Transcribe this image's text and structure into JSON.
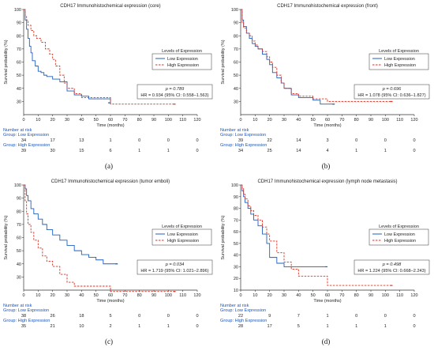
{
  "chart_data": [
    {
      "type": "line",
      "panel_label": "(a)",
      "title": "CDH17 Immunohistochemical expression (core)",
      "xlabel": "Time (months)",
      "ylabel": "Survival probability (%)",
      "xlim": [
        0,
        120
      ],
      "ylim": [
        20,
        100
      ],
      "xticks": [
        0,
        10,
        20,
        30,
        40,
        50,
        60,
        70,
        80,
        90,
        100,
        110,
        120
      ],
      "yticks": [
        30,
        40,
        50,
        60,
        70,
        80,
        90,
        100
      ],
      "legend": {
        "title": "Levels of Expression",
        "placement": "right"
      },
      "p_text": "p = 0.789",
      "hr_text": "HR = 0.934 (95% CI: 0.558–1.563)",
      "risk_title": "Number at risk",
      "series": [
        {
          "name": "Low Expression",
          "group_label": "Group: Low Expression",
          "color": "#1f5fbf",
          "dash": "solid",
          "at_risk": [
            "34",
            "17",
            "13",
            "1",
            "0",
            "0",
            "0"
          ],
          "x": [
            0,
            1,
            2,
            3,
            4,
            5,
            6,
            8,
            10,
            12,
            14,
            16,
            20,
            25,
            30,
            35,
            40,
            45,
            60
          ],
          "y": [
            100,
            92,
            85,
            78,
            72,
            67,
            61,
            57,
            53,
            52,
            50,
            49,
            47,
            45,
            38,
            35,
            34,
            32,
            29
          ]
        },
        {
          "name": "High Expression",
          "group_label": "Group: High Expression",
          "color": "#e03020",
          "dash": "dashed",
          "at_risk": [
            "39",
            "30",
            "15",
            "6",
            "1",
            "1",
            "0"
          ],
          "x": [
            0,
            1,
            2,
            3,
            5,
            7,
            9,
            12,
            15,
            18,
            20,
            22,
            25,
            28,
            30,
            35,
            40,
            50,
            60,
            105
          ],
          "y": [
            100,
            95,
            92,
            88,
            84,
            80,
            78,
            75,
            70,
            66,
            62,
            57,
            50,
            44,
            40,
            36,
            33,
            33,
            28,
            28
          ]
        }
      ]
    },
    {
      "type": "line",
      "panel_label": "(b)",
      "title": "CDH17 Immunohistochemical expression (front)",
      "xlabel": "Time (months)",
      "ylabel": "Survival probability (%)",
      "xlim": [
        0,
        120
      ],
      "ylim": [
        20,
        100
      ],
      "xticks": [
        0,
        10,
        20,
        30,
        40,
        50,
        60,
        70,
        80,
        90,
        100,
        110,
        120
      ],
      "yticks": [
        30,
        40,
        50,
        60,
        70,
        80,
        90,
        100
      ],
      "legend": {
        "title": "Levels of Expression",
        "placement": "right"
      },
      "p_text": "p = 0.696",
      "hr_text": "HR = 1.078 (95% CI: 0.636–1.827)",
      "risk_title": "Number at risk",
      "series": [
        {
          "name": "Low Expression",
          "group_label": "Group: Low Expression",
          "color": "#1f5fbf",
          "dash": "solid",
          "at_risk": [
            "39",
            "22",
            "14",
            "3",
            "0",
            "0",
            "0"
          ],
          "x": [
            0,
            1,
            2,
            4,
            6,
            8,
            10,
            12,
            15,
            18,
            20,
            22,
            25,
            28,
            30,
            35,
            40,
            50,
            55,
            65
          ],
          "y": [
            100,
            92,
            87,
            82,
            78,
            74,
            72,
            70,
            66,
            62,
            58,
            52,
            48,
            44,
            40,
            35,
            33,
            31,
            28,
            28
          ]
        },
        {
          "name": "High Expression",
          "group_label": "Group: High Expression",
          "color": "#e03020",
          "dash": "dashed",
          "at_risk": [
            "34",
            "25",
            "14",
            "4",
            "1",
            "1",
            "0"
          ],
          "x": [
            0,
            1,
            2,
            4,
            6,
            8,
            10,
            12,
            15,
            18,
            20,
            22,
            25,
            28,
            30,
            35,
            40,
            50,
            60,
            105
          ],
          "y": [
            100,
            90,
            86,
            82,
            80,
            76,
            73,
            70,
            68,
            64,
            60,
            56,
            50,
            44,
            40,
            36,
            34,
            32,
            30,
            30
          ]
        }
      ]
    },
    {
      "type": "line",
      "panel_label": "(c)",
      "title": "CDH17 Immunohistochemical expression (tumor emboli)",
      "xlabel": "Time (months)",
      "ylabel": "Survival probability (%)",
      "xlim": [
        0,
        120
      ],
      "ylim": [
        20,
        100
      ],
      "xticks": [
        0,
        10,
        20,
        30,
        40,
        50,
        60,
        70,
        80,
        90,
        100,
        110,
        120
      ],
      "yticks": [
        30,
        40,
        50,
        60,
        70,
        80,
        90,
        100
      ],
      "legend": {
        "title": "Levels of Expression",
        "placement": "right"
      },
      "p_text": "p = 0.034",
      "hr_text": "HR = 1.719 (95% CI: 1.021–2.896)",
      "risk_title": "Number at risk",
      "series": [
        {
          "name": "Low Expression",
          "group_label": "Group: Low Expression",
          "color": "#1f5fbf",
          "dash": "solid",
          "at_risk": [
            "38",
            "26",
            "18",
            "5",
            "0",
            "0",
            "0"
          ],
          "x": [
            0,
            1,
            2,
            3,
            5,
            7,
            10,
            13,
            16,
            20,
            25,
            30,
            35,
            40,
            45,
            50,
            55,
            65
          ],
          "y": [
            100,
            97,
            92,
            88,
            82,
            78,
            74,
            70,
            66,
            62,
            58,
            54,
            50,
            47,
            45,
            43,
            40,
            40
          ]
        },
        {
          "name": "High Expression",
          "group_label": "Group: High Expression",
          "color": "#e03020",
          "dash": "dashed",
          "at_risk": [
            "35",
            "21",
            "10",
            "2",
            "1",
            "1",
            "0"
          ],
          "x": [
            0,
            1,
            2,
            3,
            5,
            7,
            10,
            13,
            16,
            20,
            25,
            30,
            35,
            40,
            50,
            60,
            105
          ],
          "y": [
            100,
            88,
            78,
            70,
            64,
            58,
            52,
            46,
            42,
            38,
            32,
            26,
            23,
            23,
            23,
            19,
            19
          ]
        }
      ]
    },
    {
      "type": "line",
      "panel_label": "(d)",
      "title": "CDH17 Immunohistochemical expression (lymph node metastasis)",
      "xlabel": "Time (months)",
      "ylabel": "Survival probability (%)",
      "xlim": [
        0,
        120
      ],
      "ylim": [
        10,
        100
      ],
      "xticks": [
        0,
        10,
        20,
        30,
        40,
        50,
        60,
        70,
        80,
        90,
        100,
        110,
        120
      ],
      "yticks": [
        10,
        20,
        30,
        40,
        50,
        60,
        70,
        80,
        90,
        100
      ],
      "legend": {
        "title": "Levels of Expression",
        "placement": "right"
      },
      "p_text": "p = 0.498",
      "hr_text": "HR = 1.224 (95% CI: 0.668–2.243)",
      "risk_title": "Number at risk",
      "series": [
        {
          "name": "Low Expression",
          "group_label": "Group: Low Expression",
          "color": "#1f5fbf",
          "dash": "solid",
          "at_risk": [
            "22",
            "9",
            "7",
            "1",
            "0",
            "0",
            "0"
          ],
          "x": [
            0,
            1,
            2,
            3,
            5,
            7,
            9,
            12,
            15,
            18,
            20,
            25,
            30,
            40,
            60
          ],
          "y": [
            100,
            95,
            90,
            85,
            80,
            75,
            70,
            65,
            58,
            50,
            38,
            33,
            30,
            30,
            30
          ]
        },
        {
          "name": "High Expression",
          "group_label": "Group: High Expression",
          "color": "#e03020",
          "dash": "dashed",
          "at_risk": [
            "28",
            "17",
            "5",
            "1",
            "1",
            "1",
            "0"
          ],
          "x": [
            0,
            1,
            2,
            3,
            5,
            7,
            9,
            12,
            15,
            18,
            20,
            25,
            30,
            35,
            40,
            60,
            105
          ],
          "y": [
            100,
            97,
            92,
            88,
            82,
            78,
            74,
            70,
            64,
            58,
            52,
            42,
            34,
            28,
            22,
            14,
            14
          ]
        }
      ]
    }
  ]
}
